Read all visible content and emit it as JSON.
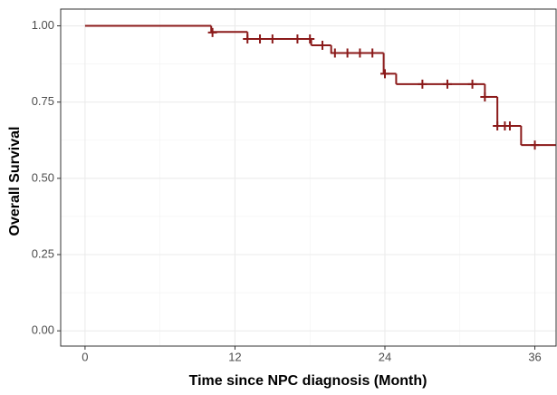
{
  "chart_data": {
    "type": "step",
    "x_label": "Time since NPC diagnosis (Month)",
    "y_label": "Overall Survival",
    "color": "#8b1a1a",
    "x": [
      0,
      10.1,
      13.0,
      18.1,
      19.7,
      23.9,
      24.9,
      32.0,
      33.0,
      34.9
    ],
    "values": [
      1.0,
      0.98,
      0.957,
      0.936,
      0.911,
      0.843,
      0.809,
      0.767,
      0.672,
      0.609
    ],
    "censor_x": [
      10.2,
      13.0,
      14.0,
      15.0,
      17.0,
      18.0,
      19.0,
      20.0,
      21.0,
      22.0,
      23.0,
      24.0,
      27.0,
      29.0,
      31.0,
      32.0,
      33.0,
      33.6,
      34.0,
      36.0
    ],
    "censor_values": [
      0.978,
      0.957,
      0.957,
      0.957,
      0.957,
      0.957,
      0.936,
      0.911,
      0.911,
      0.911,
      0.911,
      0.843,
      0.809,
      0.809,
      0.809,
      0.767,
      0.672,
      0.672,
      0.672,
      0.609
    ],
    "xlim": [
      -1.95,
      37.7
    ],
    "ylim": [
      -0.05,
      1.055
    ],
    "xticks": [
      0,
      12,
      24,
      36
    ],
    "yticks": [
      {
        "value": 0,
        "label": "0.00"
      },
      {
        "value": 0.25,
        "label": "0.25"
      },
      {
        "value": 0.5,
        "label": "0.50"
      },
      {
        "value": 0.75,
        "label": "0.75"
      },
      {
        "value": 1,
        "label": "1.00"
      }
    ],
    "grid": true,
    "minor_grid": true
  }
}
